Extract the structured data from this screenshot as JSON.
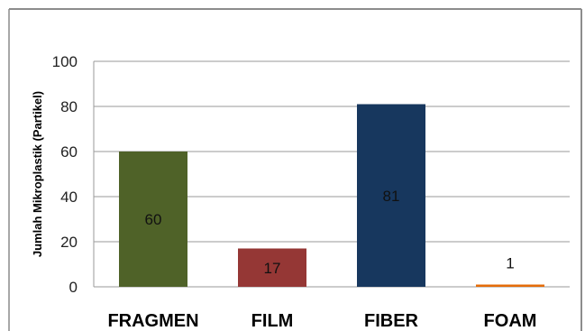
{
  "chart_data": {
    "type": "bar",
    "title": "",
    "xlabel": "",
    "ylabel": "Jumlah  Mikroplastik (Partikel)",
    "categories": [
      "FRAGMEN",
      "FILM",
      "FIBER",
      "FOAM"
    ],
    "values": [
      60,
      17,
      81,
      1
    ],
    "data_labels": [
      "60",
      "17",
      "81",
      "1"
    ],
    "colors": [
      "#4f6228",
      "#953735",
      "#17375e",
      "#e46c0a"
    ],
    "ylim": [
      0,
      100
    ],
    "yticks": [
      0,
      20,
      40,
      60,
      80,
      100
    ],
    "ytick_labels": [
      "0",
      "20",
      "40",
      "60",
      "80",
      "100"
    ],
    "grid": true,
    "legend": "none"
  }
}
